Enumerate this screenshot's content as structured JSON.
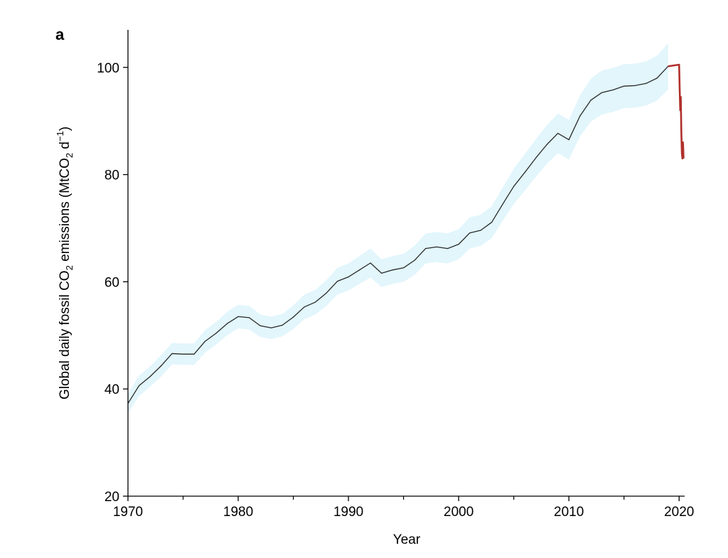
{
  "chart_data": {
    "type": "line",
    "panel_label": "a",
    "xlabel": "Year",
    "ylabel": {
      "prefix": "Global daily fossil CO",
      "sub1": "2",
      "middle": " emissions (MtCO",
      "sub2": "2",
      "middle2": " d",
      "sup": "−1",
      "suffix": ")"
    },
    "xlim": [
      1970,
      2020.5
    ],
    "ylim": [
      20,
      107
    ],
    "xticks": [
      1970,
      1980,
      1990,
      2000,
      2010,
      2020
    ],
    "yticks": [
      20,
      40,
      60,
      80,
      100
    ],
    "grid": false,
    "colors": {
      "line": "#2a2a2a",
      "band": "#e2f6fc",
      "covid": "#b0302b",
      "axis": "#000000"
    },
    "series": [
      {
        "x": [
          1970,
          1971,
          1972,
          1973,
          1974,
          1975,
          1976,
          1977,
          1978,
          1979,
          1980,
          1981,
          1982,
          1983,
          1984,
          1985,
          1986,
          1987,
          1988,
          1989,
          1990,
          1991,
          1992,
          1993,
          1994,
          1995,
          1996,
          1997,
          1998,
          1999,
          2000,
          2001,
          2002,
          2003,
          2004,
          2005,
          2006,
          2007,
          2008,
          2009,
          2010,
          2011,
          2012,
          2013,
          2014,
          2015,
          2016,
          2017,
          2018,
          2019
        ],
        "y": [
          37.3,
          40.6,
          42.3,
          44.3,
          46.6,
          46.5,
          46.5,
          48.9,
          50.4,
          52.2,
          53.5,
          53.3,
          51.8,
          51.4,
          51.9,
          53.4,
          55.3,
          56.2,
          57.9,
          60.1,
          60.9,
          62.2,
          63.5,
          61.6,
          62.2,
          62.6,
          64.0,
          66.2,
          66.5,
          66.2,
          67.0,
          69.1,
          69.6,
          71.1,
          74.5,
          77.8,
          80.4,
          83.1,
          85.6,
          87.7,
          86.5,
          90.9,
          93.9,
          95.3,
          95.8,
          96.5,
          96.6,
          97.0,
          98.0,
          100.2
        ],
        "band_lower": [
          35.5,
          38.7,
          40.4,
          42.3,
          44.6,
          44.5,
          44.5,
          46.8,
          48.3,
          50.0,
          51.3,
          51.1,
          49.7,
          49.3,
          49.8,
          51.2,
          53.0,
          53.9,
          55.5,
          57.6,
          58.4,
          59.6,
          60.8,
          59.0,
          59.6,
          60.0,
          61.3,
          63.4,
          63.7,
          63.4,
          64.2,
          66.2,
          66.7,
          68.1,
          71.4,
          74.5,
          77.0,
          79.6,
          82.0,
          84.0,
          82.8,
          87.1,
          89.9,
          91.2,
          91.7,
          92.4,
          92.5,
          92.9,
          93.8,
          95.9
        ],
        "band_upper": [
          39.1,
          42.5,
          44.2,
          46.3,
          48.6,
          48.5,
          48.5,
          51.0,
          52.5,
          54.4,
          55.7,
          55.5,
          53.9,
          53.5,
          54.0,
          55.6,
          57.6,
          58.5,
          60.3,
          62.6,
          63.4,
          64.8,
          66.2,
          64.2,
          64.8,
          65.2,
          66.7,
          69.0,
          69.3,
          69.0,
          69.8,
          72.0,
          72.5,
          74.1,
          77.6,
          81.1,
          83.8,
          86.6,
          89.2,
          91.4,
          90.2,
          94.7,
          97.9,
          99.4,
          99.9,
          100.6,
          100.7,
          101.1,
          102.2,
          104.5
        ]
      },
      {
        "x": [
          2020.0,
          2020.05,
          2020.1,
          2020.15,
          2020.2,
          2020.25,
          2020.3,
          2020.35,
          2020.4
        ],
        "y": [
          100.5,
          96.0,
          92.0,
          94.5,
          88.0,
          84.0,
          83.0,
          86.0,
          83.0
        ]
      }
    ]
  }
}
